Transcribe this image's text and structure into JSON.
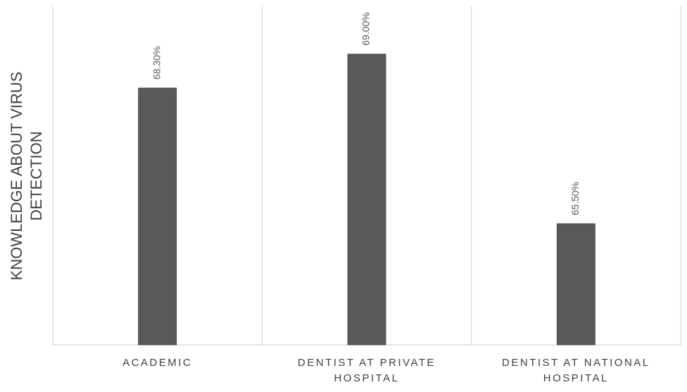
{
  "chart_data": {
    "type": "bar",
    "y_label": "KNOWLEDGE ABOUT VIRUS DETECTION",
    "categories": [
      "ACADEMIC",
      "DENTIST AT PRIVATE HOSPITAL",
      "DENTIST AT NATIONAL HOSPITAL"
    ],
    "values": [
      68.3,
      69.0,
      65.5
    ],
    "value_labels": [
      "68.30%",
      "69.00%",
      "65.50%"
    ],
    "color": "#595959",
    "ylim": [
      63,
      70
    ]
  }
}
